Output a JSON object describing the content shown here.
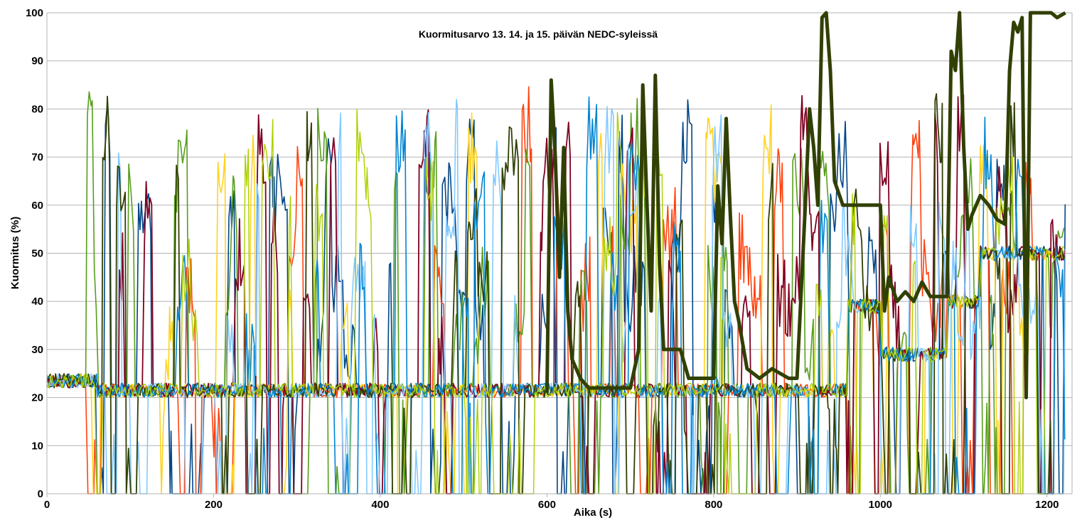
{
  "chart_data": {
    "type": "line",
    "title": "Kuormitusarvo 13. 14. ja 15. päivän NEDC-syleissä",
    "xlabel": "Aika (s)",
    "ylabel": "Kuormitus (%)",
    "xlim": [
      0,
      1230
    ],
    "ylim": [
      0,
      100
    ],
    "x_ticks": [
      0,
      200,
      400,
      600,
      800,
      1000,
      1200
    ],
    "y_ticks": [
      0,
      10,
      20,
      30,
      40,
      50,
      60,
      70,
      80,
      90,
      100
    ],
    "grid": true,
    "legend": "none",
    "series": [
      {
        "color": "#004586",
        "width": 1.6,
        "seed": 11,
        "hi": 0.55
      },
      {
        "color": "#ff420e",
        "width": 1.6,
        "seed": 23,
        "hi": 0.5
      },
      {
        "color": "#ffd320",
        "width": 1.6,
        "seed": 37,
        "hi": 0.5
      },
      {
        "color": "#579d1c",
        "width": 1.6,
        "seed": 41,
        "hi": 0.55
      },
      {
        "color": "#7e0021",
        "width": 1.8,
        "seed": 53,
        "hi": 0.6
      },
      {
        "color": "#83caff",
        "width": 1.6,
        "seed": 67,
        "hi": 0.6
      },
      {
        "color": "#314004",
        "width": 1.8,
        "seed": 71,
        "hi": 0.5
      },
      {
        "color": "#0084d1",
        "width": 1.6,
        "seed": 89,
        "hi": 0.45
      },
      {
        "color": "#aecf00",
        "width": 1.4,
        "seed": 97,
        "hi": 0.4
      }
    ],
    "highlight_series": {
      "color": "#314004",
      "width": 5,
      "points": [
        [
          600,
          21
        ],
        [
          605,
          86
        ],
        [
          610,
          70
        ],
        [
          615,
          45
        ],
        [
          620,
          72
        ],
        [
          625,
          38
        ],
        [
          630,
          28
        ],
        [
          640,
          24
        ],
        [
          650,
          22
        ],
        [
          680,
          22
        ],
        [
          700,
          22
        ],
        [
          710,
          30
        ],
        [
          715,
          85
        ],
        [
          720,
          60
        ],
        [
          725,
          38
        ],
        [
          730,
          87
        ],
        [
          735,
          48
        ],
        [
          740,
          30
        ],
        [
          760,
          30
        ],
        [
          770,
          24
        ],
        [
          800,
          24
        ],
        [
          805,
          64
        ],
        [
          810,
          52
        ],
        [
          815,
          78
        ],
        [
          820,
          58
        ],
        [
          825,
          40
        ],
        [
          830,
          36
        ],
        [
          840,
          26
        ],
        [
          855,
          24
        ],
        [
          870,
          26
        ],
        [
          880,
          25
        ],
        [
          890,
          24
        ],
        [
          900,
          24
        ],
        [
          910,
          60
        ],
        [
          915,
          80
        ],
        [
          920,
          72
        ],
        [
          925,
          60
        ],
        [
          930,
          99
        ],
        [
          935,
          100
        ],
        [
          940,
          88
        ],
        [
          945,
          65
        ],
        [
          955,
          60
        ],
        [
          1000,
          60
        ],
        [
          1005,
          38
        ],
        [
          1010,
          45
        ],
        [
          1020,
          40
        ],
        [
          1030,
          42
        ],
        [
          1040,
          40
        ],
        [
          1050,
          44
        ],
        [
          1060,
          41
        ],
        [
          1080,
          41
        ],
        [
          1085,
          92
        ],
        [
          1090,
          88
        ],
        [
          1095,
          100
        ],
        [
          1100,
          72
        ],
        [
          1105,
          55
        ],
        [
          1110,
          58
        ],
        [
          1120,
          62
        ],
        [
          1130,
          60
        ],
        [
          1140,
          57
        ],
        [
          1150,
          56
        ],
        [
          1155,
          88
        ],
        [
          1160,
          98
        ],
        [
          1165,
          96
        ],
        [
          1170,
          99
        ],
        [
          1175,
          20
        ],
        [
          1180,
          100
        ],
        [
          1200,
          100
        ],
        [
          1205,
          100
        ],
        [
          1212,
          99
        ],
        [
          1222,
          100
        ]
      ]
    }
  }
}
